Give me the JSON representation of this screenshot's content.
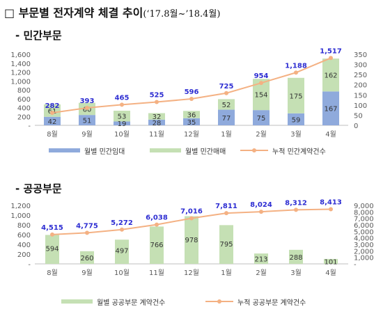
{
  "header": {
    "title": "□ 부문별 전자계약 체결 추이",
    "subtitle": "(‘17.8월~’18.4월)"
  },
  "sections": {
    "private_title": "- 민간부문",
    "public_title": "- 공공부문"
  },
  "colors": {
    "lease_bar": "#8faadc",
    "sale_bar": "#c5e0b4",
    "public_bar": "#c5e0b4",
    "cumulative_line": "#f4b183",
    "data_label_blue": "#2d2dd2",
    "axis_text": "#595959",
    "grid": "#d9d9d9"
  },
  "chart_data": [
    {
      "type": "bar",
      "stacked": true,
      "categories": [
        "8월",
        "9월",
        "10월",
        "11월",
        "12월",
        "1월",
        "2월",
        "3월",
        "4월"
      ],
      "series": [
        {
          "name": "월별 민간임대",
          "type": "bar",
          "axis": "right",
          "values": [
            42,
            51,
            19,
            28,
            35,
            77,
            75,
            59,
            167
          ]
        },
        {
          "name": "월별 민간매매",
          "type": "bar",
          "axis": "right",
          "values": [
            61,
            60,
            53,
            32,
            36,
            52,
            154,
            175,
            162
          ]
        },
        {
          "name": "누적 민간계약건수",
          "type": "line",
          "axis": "left",
          "values": [
            282,
            393,
            465,
            525,
            596,
            725,
            954,
            1188,
            1517
          ]
        }
      ],
      "y_left": {
        "ticks": [
          "1,600",
          "1,400",
          "1,200",
          "1,000",
          "800",
          "600",
          "400",
          "200",
          "-"
        ],
        "range": [
          0,
          1600
        ]
      },
      "y_right": {
        "ticks": [
          "350",
          "300",
          "250",
          "200",
          "150",
          "100",
          "50",
          "0"
        ],
        "range": [
          0,
          350
        ]
      },
      "data_labels": {
        "lease": [
          "42",
          "51",
          "19",
          "28",
          "35",
          "77",
          "75",
          "59",
          "167"
        ],
        "sale": [
          "61",
          "60",
          "53",
          "32",
          "36",
          "52",
          "154",
          "175",
          "162"
        ],
        "cumulative": [
          "282",
          "393",
          "465",
          "525",
          "596",
          "725",
          "954",
          "1,188",
          "1,517"
        ]
      },
      "legend": {
        "position": "bottom",
        "items": [
          "월별 민간임대",
          "월별 민간매매",
          "누적 민간계약건수"
        ]
      }
    },
    {
      "type": "bar",
      "categories": [
        "8월",
        "9월",
        "10월",
        "11월",
        "12월",
        "1월",
        "2월",
        "3월",
        "4월"
      ],
      "series": [
        {
          "name": "월별 공공부문 계약건수",
          "type": "bar",
          "axis": "left",
          "values": [
            594,
            260,
            497,
            766,
            978,
            795,
            213,
            288,
            101
          ]
        },
        {
          "name": "누적 공공부문 계약건수",
          "type": "line",
          "axis": "right",
          "values": [
            4515,
            4775,
            5272,
            6038,
            7016,
            7811,
            8024,
            8312,
            8413
          ]
        }
      ],
      "y_left": {
        "ticks": [
          "1,200",
          "1,000",
          "800",
          "600",
          "400",
          "200",
          "-"
        ],
        "range": [
          0,
          1200
        ]
      },
      "y_right": {
        "ticks": [
          "9,000",
          "8,000",
          "7,000",
          "6,000",
          "5,000",
          "4,000",
          "3,000",
          "2,000",
          "1,000",
          "-"
        ],
        "range": [
          0,
          9000
        ]
      },
      "data_labels": {
        "monthly": [
          "594",
          "260",
          "497",
          "766",
          "978",
          "795",
          "213",
          "288",
          "101"
        ],
        "cumulative": [
          "4,515",
          "4,775",
          "5,272",
          "6,038",
          "7,016",
          "7,811",
          "8,024",
          "8,312",
          "8,413"
        ]
      },
      "legend": {
        "position": "bottom",
        "items": [
          "월별 공공부문 계약건수",
          "누적 공공부문 계약건수"
        ]
      }
    }
  ]
}
